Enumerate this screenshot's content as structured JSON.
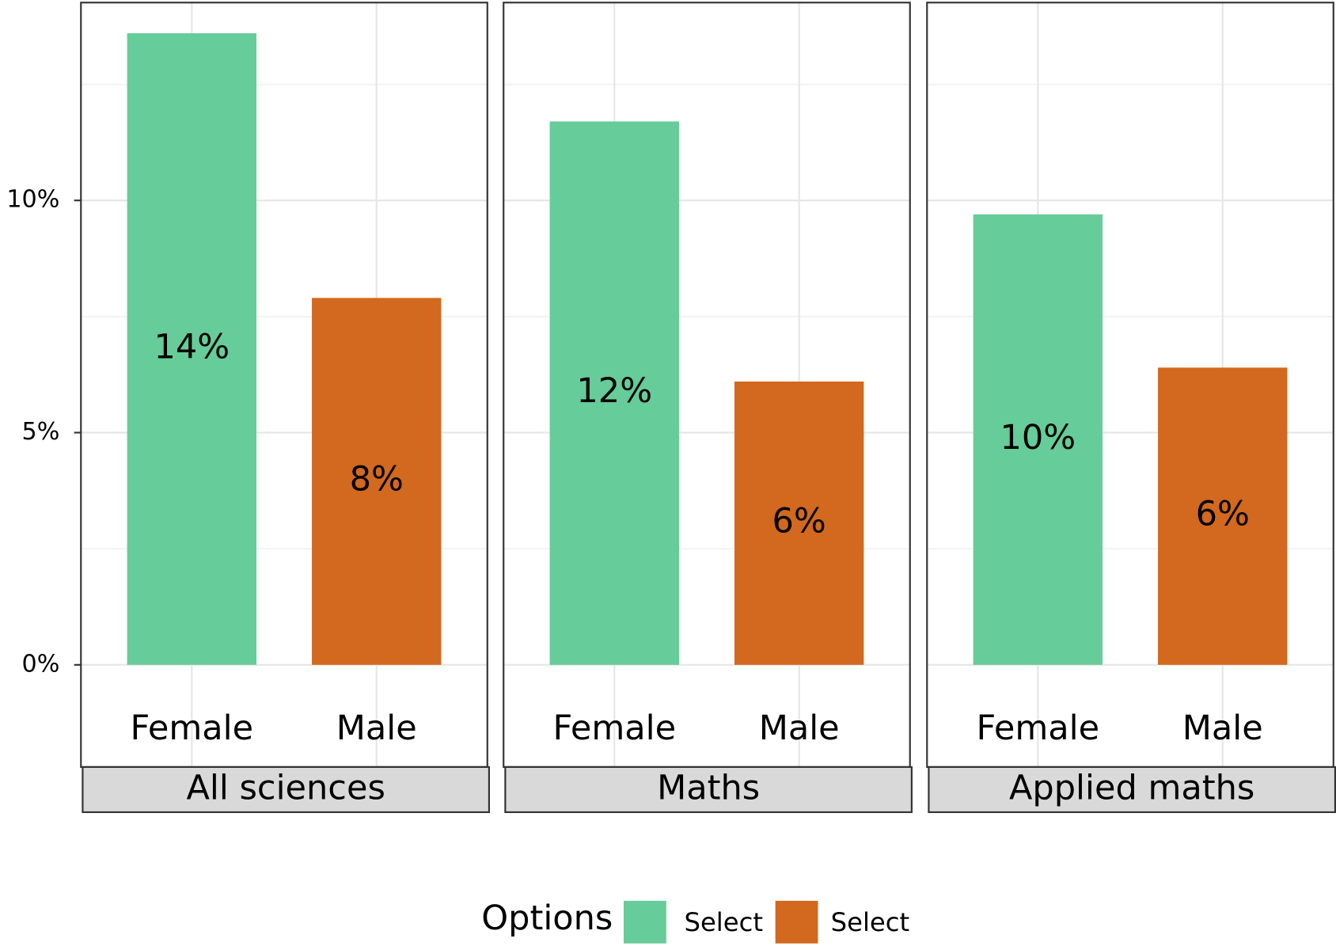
{
  "chart_data": {
    "type": "bar",
    "categories": [
      "Female",
      "Male"
    ],
    "facets": [
      {
        "title": "All sciences",
        "values": [
          13.6,
          7.9
        ],
        "value_labels": [
          "14%",
          "8%"
        ]
      },
      {
        "title": "Maths",
        "values": [
          11.7,
          6.1
        ],
        "value_labels": [
          "12%",
          "6%"
        ]
      },
      {
        "title": "Applied maths",
        "values": [
          9.7,
          6.4
        ],
        "value_labels": [
          "10%",
          "6%"
        ]
      }
    ],
    "ylim": [
      -2.2,
      14.26
    ],
    "yticks": [
      {
        "value": 0,
        "label": "0%"
      },
      {
        "value": 5,
        "label": "5%"
      },
      {
        "value": 10,
        "label": "10%"
      }
    ],
    "minor_yticks": [
      2.5,
      7.5,
      12.5
    ],
    "grid": true,
    "legend": {
      "title": "Options",
      "position": "bottom",
      "entries": [
        {
          "name": "Select",
          "color": "#66cc99"
        },
        {
          "name": "Select",
          "color": "#d2691e"
        }
      ]
    }
  }
}
